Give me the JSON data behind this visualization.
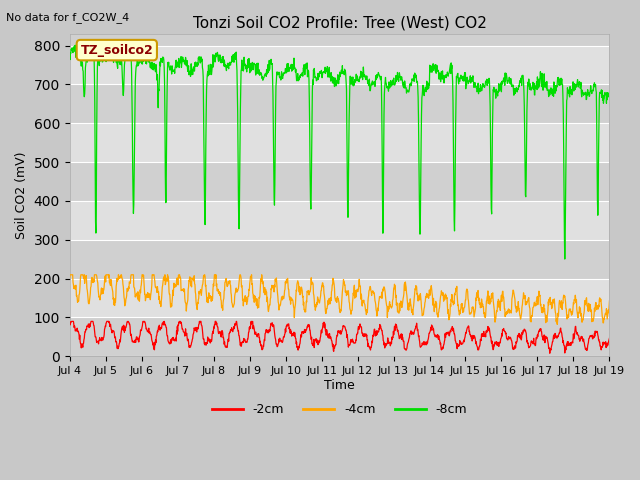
{
  "title": "Tonzi Soil CO2 Profile: Tree (West) CO2",
  "no_data_label": "No data for f_CO2W_4",
  "ylabel": "Soil CO2 (mV)",
  "xlabel": "Time",
  "ylim": [
    0,
    830
  ],
  "yticks": [
    0,
    100,
    200,
    300,
    400,
    500,
    600,
    700,
    800
  ],
  "xtick_labels": [
    "Jul 4",
    "Jul 5",
    "Jul 6",
    "Jul 7",
    "Jul 8",
    "Jul 9",
    "Jul 10",
    "Jul 11",
    "Jul 12",
    "Jul 13",
    "Jul 14",
    "Jul 15",
    "Jul 16",
    "Jul 17",
    "Jul 18",
    "Jul 19"
  ],
  "legend_entries": [
    "-2cm",
    "-4cm",
    "-8cm"
  ],
  "legend_colors": [
    "#ff0000",
    "#ffa500",
    "#00dd00"
  ],
  "line_colors": [
    "#ff0000",
    "#ffa500",
    "#00dd00"
  ],
  "box_label": "TZ_soilco2",
  "box_facecolor": "#ffffcc",
  "box_edgecolor": "#cc9900",
  "fig_bg_color": "#c8c8c8",
  "plot_bg_color": "#e0e0e0",
  "band_color_light": "#e8e8e8",
  "band_color_dark": "#d8d8d8",
  "n_days": 15,
  "n_points_per_day": 96,
  "grid_color": "#ffffff"
}
